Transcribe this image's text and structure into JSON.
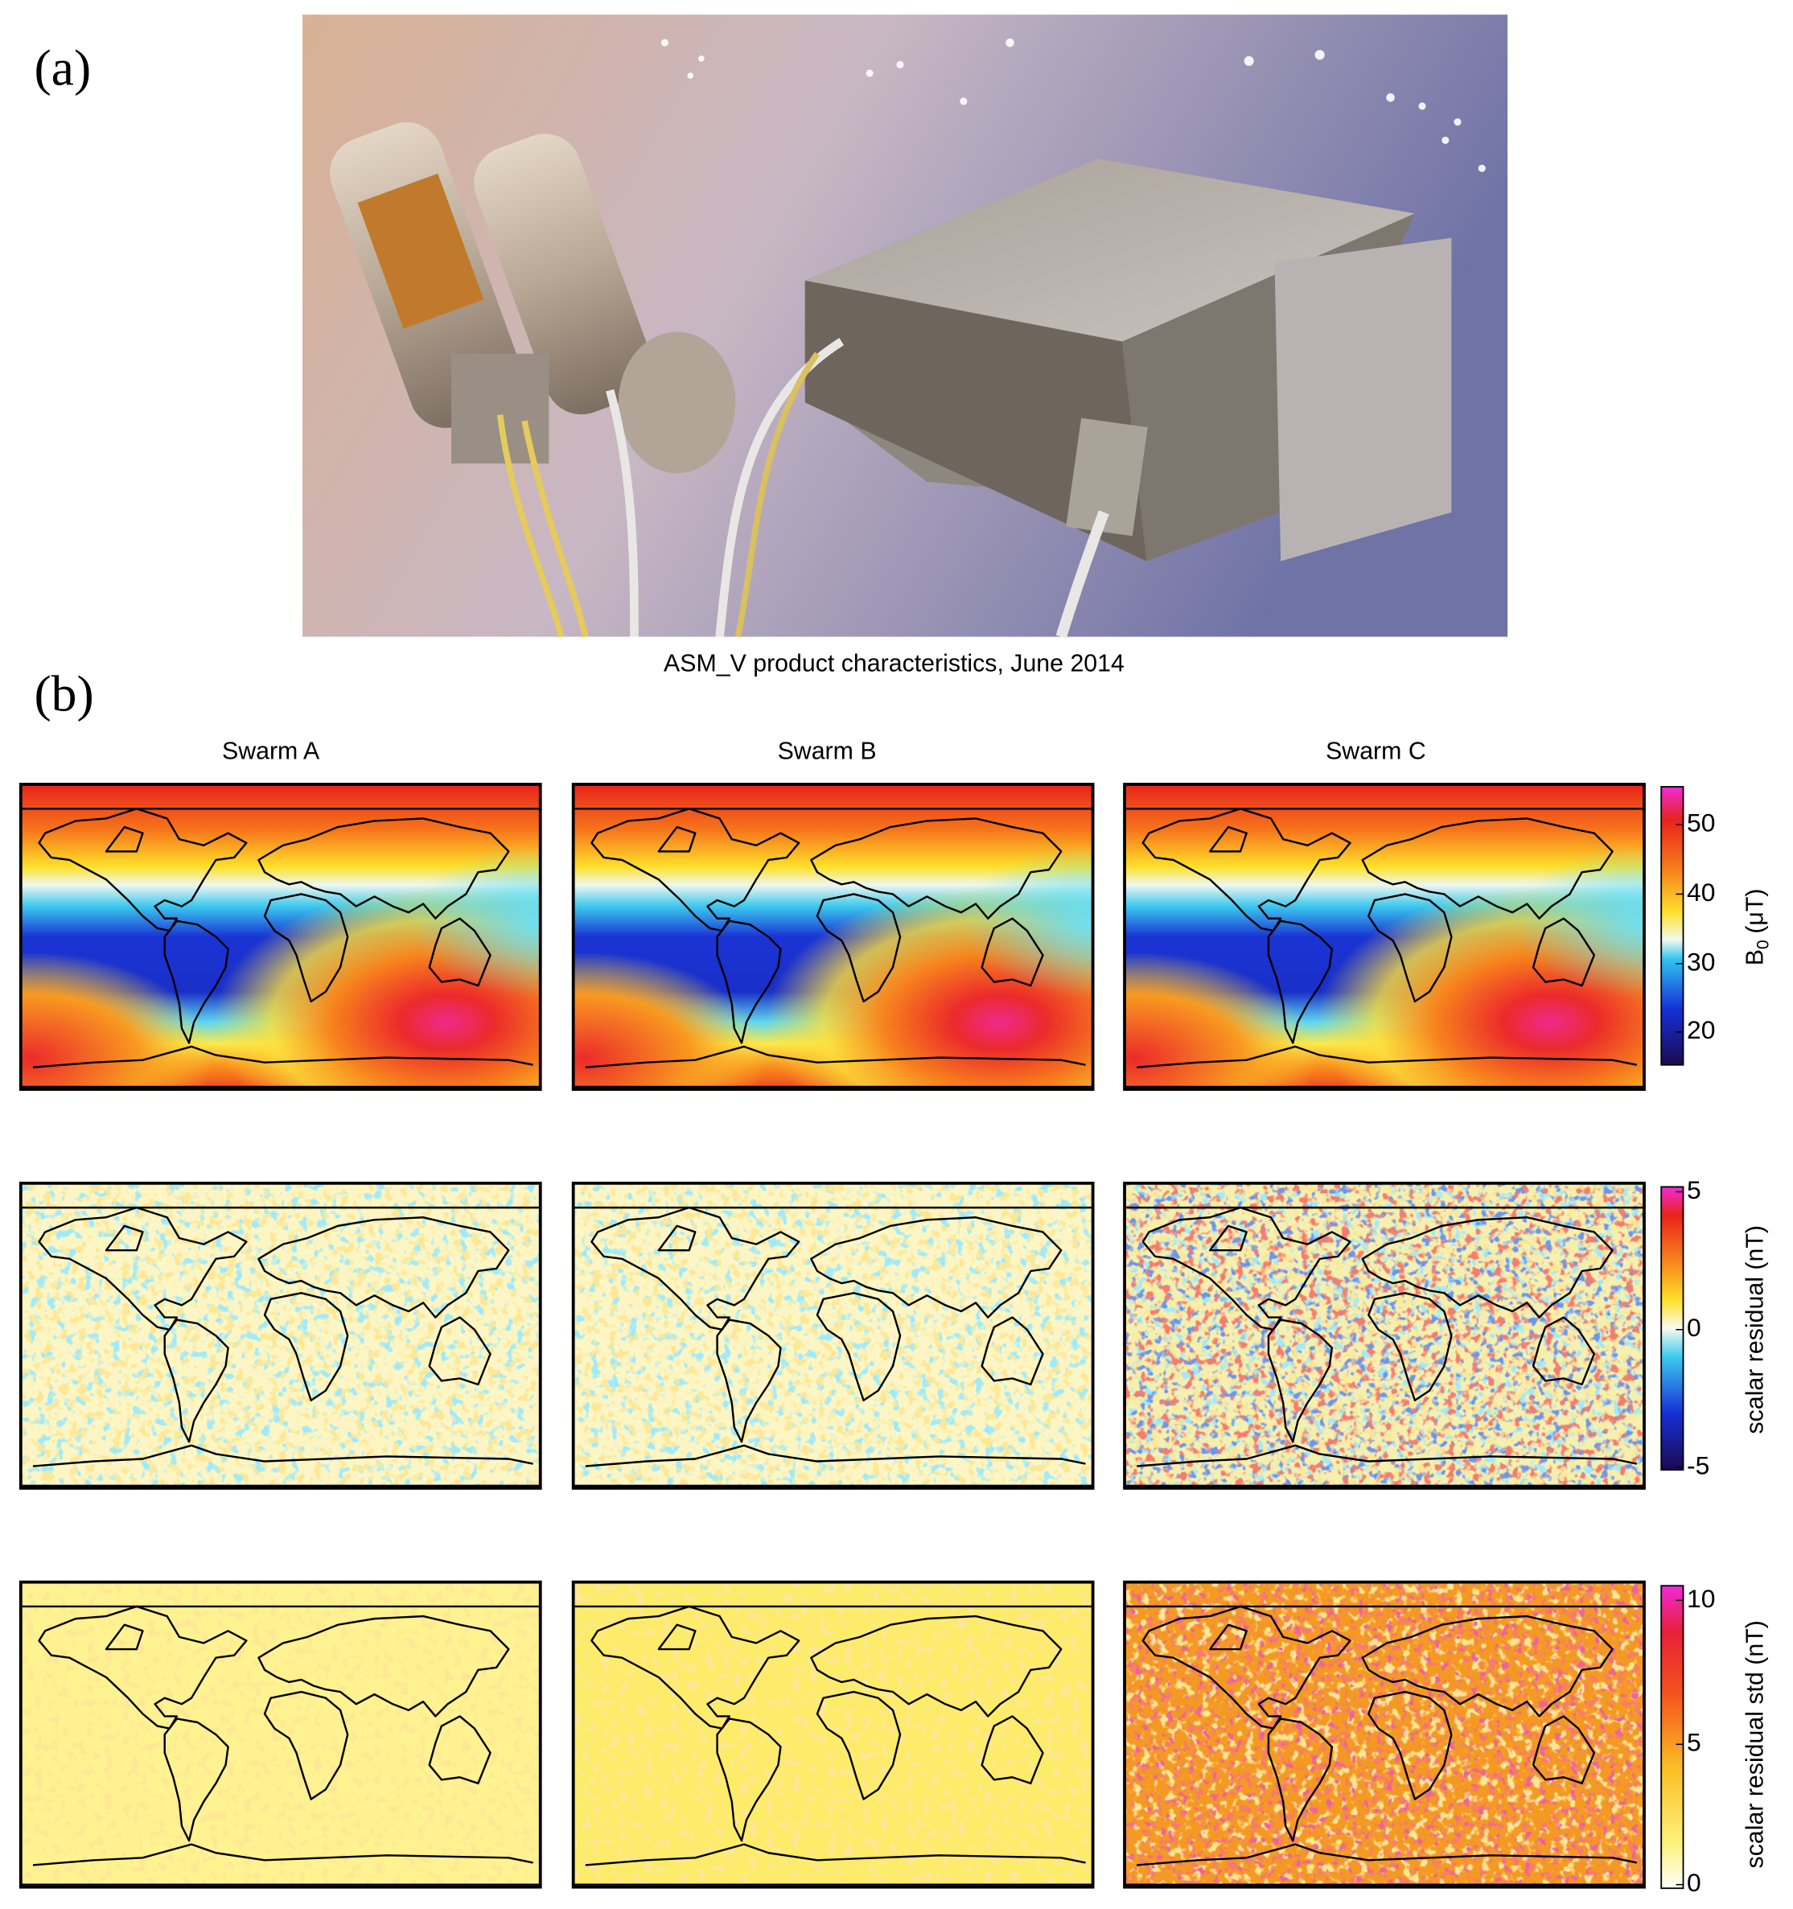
{
  "panel_a": {
    "label": "(a)",
    "caption": "ASM_V product characteristics, June 2014"
  },
  "panel_b": {
    "label": "(b)",
    "columns": [
      "Swarm A",
      "Swarm B",
      "Swarm C"
    ],
    "colorbars": [
      {
        "label": {
          "symbol": "B",
          "subscript": "0",
          "unit": "(μT)"
        },
        "ticks": [
          50,
          40,
          30,
          20
        ]
      },
      {
        "label": "scalar residual (nT)",
        "ticks": [
          5,
          0,
          -5
        ]
      },
      {
        "label": "scalar residual std (nT)",
        "ticks": [
          10,
          5,
          0
        ]
      }
    ]
  }
}
